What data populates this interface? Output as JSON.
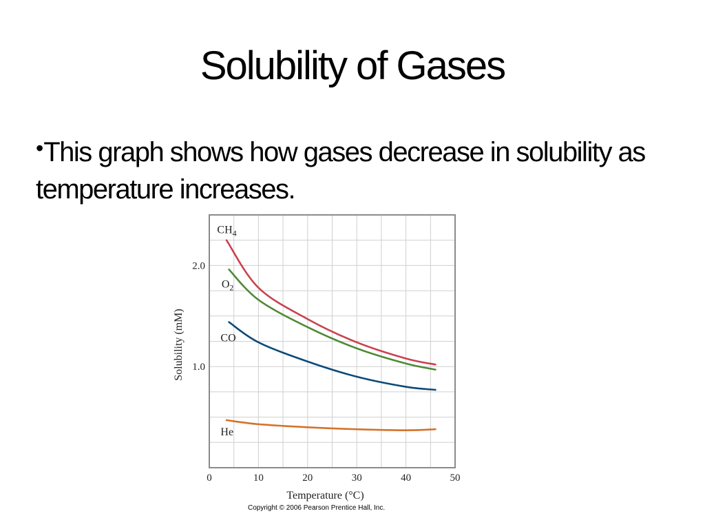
{
  "slide": {
    "title": "Solubility of Gases",
    "bullet_marker": "•",
    "bullet_text": "This graph shows how gases decrease in solubility as temperature increases.",
    "copyright": "Copyright © 2006 Pearson Prentice Hall, Inc."
  },
  "chart_data": {
    "type": "line",
    "title": "",
    "xlabel": "Temperature (°C)",
    "ylabel": "Solubility (mM)",
    "xlim": [
      0,
      50
    ],
    "ylim": [
      0,
      2.5
    ],
    "x_ticks": [
      0,
      10,
      20,
      30,
      40,
      50
    ],
    "x_tick_labels": [
      "0",
      "10",
      "20",
      "30",
      "40",
      "50"
    ],
    "y_ticks": [
      1.0,
      2.0
    ],
    "y_tick_labels": [
      "1.0",
      "2.0"
    ],
    "grid": true,
    "legend": "inline labels",
    "series": [
      {
        "name": "CH4",
        "label_base": "CH",
        "label_sub": "4",
        "color": "#c8424f",
        "x": [
          3.5,
          10,
          20,
          30,
          40,
          46
        ],
        "y": [
          2.25,
          1.78,
          1.47,
          1.24,
          1.08,
          1.02
        ],
        "label_pos": [
          1.6,
          2.32
        ]
      },
      {
        "name": "O2",
        "label_base": "O",
        "label_sub": "2",
        "color": "#4e8a35",
        "x": [
          4,
          10,
          20,
          30,
          40,
          46
        ],
        "y": [
          1.96,
          1.66,
          1.39,
          1.18,
          1.03,
          0.97
        ],
        "label_pos": [
          2.5,
          1.78
        ]
      },
      {
        "name": "CO",
        "label_base": "CO",
        "label_sub": "",
        "color": "#0d4a78",
        "x": [
          4,
          10,
          20,
          30,
          40,
          46
        ],
        "y": [
          1.44,
          1.24,
          1.05,
          0.9,
          0.8,
          0.77
        ],
        "label_pos": [
          2.3,
          1.25
        ]
      },
      {
        "name": "He",
        "label_base": "He",
        "label_sub": "",
        "color": "#d4722b",
        "x": [
          3.5,
          10,
          20,
          30,
          40,
          46
        ],
        "y": [
          0.47,
          0.43,
          0.4,
          0.38,
          0.37,
          0.38
        ],
        "label_pos": [
          2.3,
          0.32
        ]
      }
    ]
  }
}
